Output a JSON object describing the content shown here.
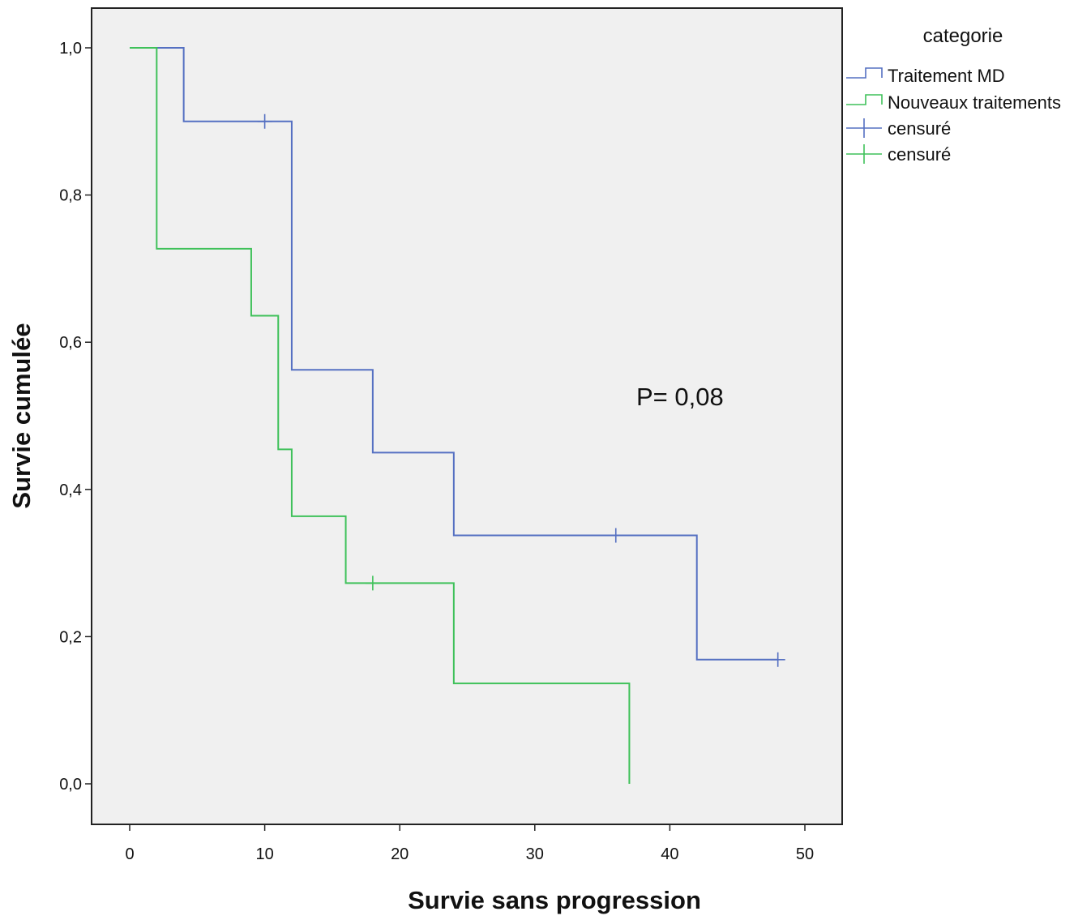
{
  "chart_data": {
    "type": "line",
    "step": true,
    "xlabel": "Survie sans progression",
    "ylabel": "Survie cumulée",
    "xlim": [
      0,
      50
    ],
    "ylim": [
      0,
      1
    ],
    "x_ticks": [
      0,
      10,
      20,
      30,
      40,
      50
    ],
    "x_tick_labels": [
      "0",
      "10",
      "20",
      "30",
      "40",
      "50"
    ],
    "y_ticks": [
      0,
      0.2,
      0.4,
      0.6,
      0.8,
      1.0
    ],
    "y_tick_labels": [
      "0,0",
      "0,2",
      "0,4",
      "0,6",
      "0,8",
      "1,0"
    ],
    "grid": false,
    "legend_title": "categorie",
    "legend_position": "top-right, outside plot",
    "annotation": "P= 0,08",
    "series": [
      {
        "name": "Traitement MD",
        "color": "#5570c2",
        "steps": [
          [
            0,
            1.0
          ],
          [
            4,
            0.9
          ],
          [
            12,
            0.5625
          ],
          [
            18,
            0.45
          ],
          [
            24,
            0.3375
          ],
          [
            42,
            0.16875
          ]
        ],
        "end_x": 48,
        "censored": [
          [
            10,
            0.9
          ],
          [
            36,
            0.3375
          ],
          [
            48,
            0.16875
          ]
        ]
      },
      {
        "name": "Nouveaux traitements",
        "color": "#3fc15a",
        "steps": [
          [
            0,
            1.0
          ],
          [
            2,
            0.727
          ],
          [
            9,
            0.636
          ],
          [
            11,
            0.4545
          ],
          [
            12,
            0.3636
          ],
          [
            16,
            0.2727
          ],
          [
            24,
            0.1364
          ],
          [
            37,
            0.0
          ]
        ],
        "end_x": 37,
        "censored": [
          [
            18,
            0.2727
          ]
        ]
      }
    ],
    "legend_entries": [
      "Traitement MD",
      "Nouveaux traitements",
      "censuré",
      "censuré"
    ]
  },
  "colors": {
    "plot_background": "#f0f0f0",
    "frame": "#222222"
  }
}
